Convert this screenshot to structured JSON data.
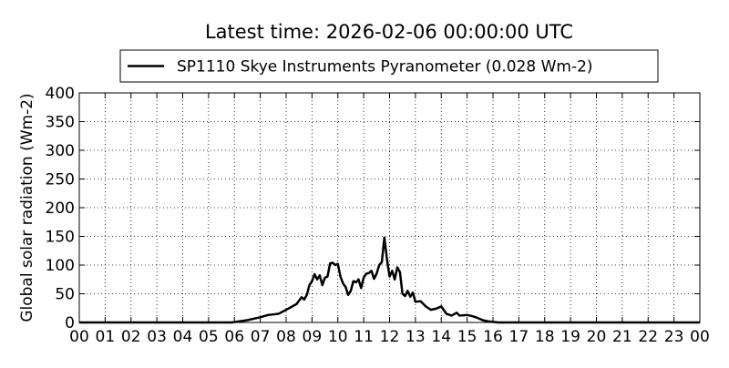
{
  "chart_data": {
    "type": "line",
    "title": "Latest time: 2026-02-06 00:00:00 UTC",
    "y_label": "Global solar radiation (Wm-2)",
    "legend": "upper center",
    "grid": true,
    "xlim": [
      0,
      24
    ],
    "ylim": [
      0,
      400
    ],
    "yticks": [
      0,
      50,
      100,
      150,
      200,
      250,
      300,
      350,
      400
    ],
    "xticks": [
      {
        "value": 0,
        "label": "00"
      },
      {
        "value": 1,
        "label": "01"
      },
      {
        "value": 2,
        "label": "02"
      },
      {
        "value": 3,
        "label": "03"
      },
      {
        "value": 4,
        "label": "04"
      },
      {
        "value": 5,
        "label": "05"
      },
      {
        "value": 6,
        "label": "06"
      },
      {
        "value": 7,
        "label": "07"
      },
      {
        "value": 8,
        "label": "08"
      },
      {
        "value": 9,
        "label": "09"
      },
      {
        "value": 10,
        "label": "10"
      },
      {
        "value": 11,
        "label": "11"
      },
      {
        "value": 12,
        "label": "12"
      },
      {
        "value": 13,
        "label": "13"
      },
      {
        "value": 14,
        "label": "14"
      },
      {
        "value": 15,
        "label": "15"
      },
      {
        "value": 16,
        "label": "16"
      },
      {
        "value": 17,
        "label": "17"
      },
      {
        "value": 18,
        "label": "18"
      },
      {
        "value": 19,
        "label": "19"
      },
      {
        "value": 20,
        "label": "20"
      },
      {
        "value": 21,
        "label": "21"
      },
      {
        "value": 22,
        "label": "22"
      },
      {
        "value": 23,
        "label": "23"
      },
      {
        "value": 24,
        "label": "00"
      }
    ],
    "x": [
      0,
      5.9,
      6.2,
      6.5,
      6.8,
      7.0,
      7.3,
      7.5,
      7.7,
      8.0,
      8.2,
      8.4,
      8.5,
      8.6,
      8.7,
      8.8,
      8.9,
      9.0,
      9.1,
      9.2,
      9.3,
      9.4,
      9.5,
      9.6,
      9.7,
      9.8,
      9.9,
      10.0,
      10.1,
      10.2,
      10.3,
      10.4,
      10.5,
      10.6,
      10.7,
      10.8,
      10.9,
      11.0,
      11.1,
      11.2,
      11.3,
      11.4,
      11.5,
      11.6,
      11.7,
      11.8,
      11.9,
      12.0,
      12.1,
      12.2,
      12.3,
      12.4,
      12.5,
      12.6,
      12.7,
      12.8,
      12.9,
      13.0,
      13.2,
      13.4,
      13.6,
      13.8,
      14.0,
      14.2,
      14.4,
      14.6,
      14.7,
      15.0,
      15.2,
      15.4,
      15.6,
      15.8,
      16.0,
      16.2,
      24
    ],
    "series": [
      {
        "name": "SP1110 Skye Instruments Pyranometer (0.028 Wm-2)",
        "color": "#000000",
        "values": [
          0,
          0,
          2,
          4,
          7,
          9,
          13,
          14,
          15,
          22,
          27,
          32,
          38,
          44,
          40,
          48,
          65,
          72,
          84,
          75,
          82,
          65,
          78,
          80,
          103,
          104,
          100,
          102,
          80,
          68,
          62,
          48,
          55,
          72,
          70,
          75,
          60,
          78,
          85,
          86,
          90,
          76,
          85,
          100,
          105,
          148,
          110,
          80,
          90,
          75,
          96,
          88,
          50,
          46,
          55,
          45,
          52,
          36,
          37,
          28,
          22,
          24,
          28,
          15,
          12,
          17,
          12,
          13,
          11,
          8,
          4,
          2,
          1,
          0,
          0
        ]
      }
    ]
  }
}
